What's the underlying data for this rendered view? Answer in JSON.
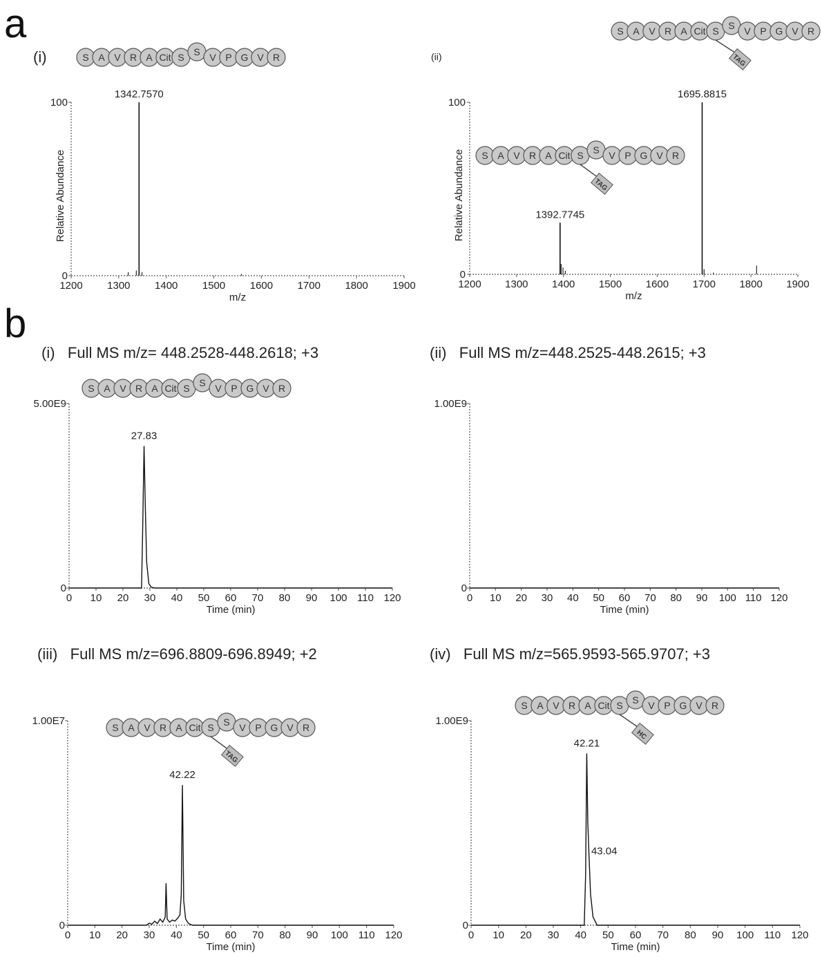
{
  "panels": {
    "a": "a",
    "b": "b"
  },
  "peptide": {
    "residues": [
      "S",
      "A",
      "V",
      "R",
      "A",
      "Cit",
      "S",
      "S",
      "V",
      "P",
      "G",
      "V",
      "R"
    ]
  },
  "peptide_tags": [
    "TAG",
    "TAG",
    "HC"
  ],
  "chart_data": [
    {
      "id": "a-i",
      "type": "line",
      "label": "(i)",
      "xlabel": "m/z",
      "ylabel": "Relative Abundance",
      "xlim": [
        1200,
        1900
      ],
      "ylim": [
        0,
        100
      ],
      "xticks": [
        "1200",
        "1300",
        "1400",
        "1500",
        "1600",
        "1700",
        "1800",
        "1900"
      ],
      "yticks": [
        "0",
        "100"
      ],
      "peaks": [
        {
          "x": 1342.757,
          "y": 100,
          "label": "1342.7570"
        },
        {
          "x": 1320,
          "y": 2
        },
        {
          "x": 1337,
          "y": 3
        },
        {
          "x": 1349,
          "y": 2
        },
        {
          "x": 1558,
          "y": 1
        }
      ]
    },
    {
      "id": "a-ii",
      "type": "line",
      "label": "(ii)",
      "xlabel": "m/z",
      "ylabel": "Relative Abundance",
      "xlim": [
        1200,
        1900
      ],
      "ylim": [
        0,
        100
      ],
      "xticks": [
        "1200",
        "1300",
        "1400",
        "1500",
        "1600",
        "1700",
        "1800",
        "1900"
      ],
      "yticks": [
        "0",
        "100"
      ],
      "peaks": [
        {
          "x": 1392.7745,
          "y": 30,
          "label": "1392.7745"
        },
        {
          "x": 1395,
          "y": 6
        },
        {
          "x": 1399,
          "y": 4
        },
        {
          "x": 1404,
          "y": 2
        },
        {
          "x": 1695.8815,
          "y": 100,
          "label": "1695.8815"
        },
        {
          "x": 1700,
          "y": 3
        },
        {
          "x": 1720,
          "y": 1
        },
        {
          "x": 1812,
          "y": 5
        }
      ]
    },
    {
      "id": "b-i",
      "type": "line",
      "label": "(i)",
      "title": "Full MS  m/z= 448.2528-448.2618; +3",
      "xlabel": "Time (min)",
      "xlim": [
        0,
        120
      ],
      "ylim": [
        0,
        5000000000
      ],
      "xticks": [
        "0",
        "10",
        "20",
        "30",
        "40",
        "50",
        "60",
        "70",
        "80",
        "90",
        "100",
        "110",
        "120"
      ],
      "yticks": [
        "0",
        "5.00E9"
      ],
      "trace": [
        [
          0,
          0
        ],
        [
          26.9,
          0
        ],
        [
          27.3,
          1500000000
        ],
        [
          27.83,
          3850000000
        ],
        [
          28.3,
          2200000000
        ],
        [
          28.8,
          700000000
        ],
        [
          29.6,
          120000000
        ],
        [
          30.5,
          20000000
        ],
        [
          32,
          0
        ],
        [
          120,
          0
        ]
      ],
      "peak_labels": [
        {
          "x": 27.83,
          "y": 3850000000,
          "label": "27.83"
        }
      ]
    },
    {
      "id": "b-ii",
      "type": "line",
      "label": "(ii)",
      "title": "Full MS  m/z=448.2525-448.2615; +3",
      "xlabel": "Time (min)",
      "xlim": [
        0,
        120
      ],
      "ylim": [
        0,
        1000000000
      ],
      "xticks": [
        "0",
        "10",
        "20",
        "30",
        "40",
        "50",
        "60",
        "70",
        "80",
        "90",
        "100",
        "110",
        "120"
      ],
      "yticks": [
        "0",
        "1.00E9"
      ],
      "trace": [
        [
          0,
          0
        ],
        [
          120,
          0
        ]
      ],
      "peak_labels": []
    },
    {
      "id": "b-iii",
      "type": "line",
      "label": "(iii)",
      "title": "Full MS  m/z=696.8809-696.8949; +2",
      "xlabel": "Time (min)",
      "xlim": [
        0,
        120
      ],
      "ylim": [
        0,
        10000000
      ],
      "xticks": [
        "0",
        "10",
        "20",
        "30",
        "40",
        "50",
        "60",
        "70",
        "80",
        "90",
        "100",
        "110",
        "120"
      ],
      "yticks": [
        "0",
        "1.00E7"
      ],
      "trace": [
        [
          0,
          0
        ],
        [
          29,
          0
        ],
        [
          30,
          100000
        ],
        [
          31,
          50000
        ],
        [
          32,
          200000
        ],
        [
          33,
          80000
        ],
        [
          34,
          300000
        ],
        [
          35,
          150000
        ],
        [
          35.9,
          400000
        ],
        [
          36.2,
          2050000
        ],
        [
          36.6,
          300000
        ],
        [
          37.5,
          150000
        ],
        [
          38.5,
          250000
        ],
        [
          39.5,
          200000
        ],
        [
          40.5,
          350000
        ],
        [
          41.3,
          500000
        ],
        [
          41.8,
          1500000
        ],
        [
          42.22,
          6850000
        ],
        [
          42.7,
          1200000
        ],
        [
          43.4,
          300000
        ],
        [
          44.5,
          80000
        ],
        [
          46,
          0
        ],
        [
          120,
          0
        ]
      ],
      "peak_labels": [
        {
          "x": 42.22,
          "y": 6850000,
          "label": "42.22"
        }
      ]
    },
    {
      "id": "b-iv",
      "type": "line",
      "label": "(iv)",
      "title": "Full MS  m/z=565.9593-565.9707; +3",
      "xlabel": "Time (min)",
      "xlim": [
        0,
        120
      ],
      "ylim": [
        0,
        1000000000
      ],
      "xticks": [
        "0",
        "10",
        "20",
        "30",
        "40",
        "50",
        "60",
        "70",
        "80",
        "90",
        "100",
        "110",
        "120"
      ],
      "yticks": [
        "0",
        "1.00E9"
      ],
      "trace": [
        [
          0,
          0
        ],
        [
          41.3,
          0
        ],
        [
          41.8,
          250000000
        ],
        [
          42.21,
          840000000
        ],
        [
          42.6,
          500000000
        ],
        [
          43.04,
          340000000
        ],
        [
          43.6,
          150000000
        ],
        [
          44.5,
          40000000
        ],
        [
          46,
          0
        ],
        [
          120,
          0
        ]
      ],
      "peak_labels": [
        {
          "x": 42.21,
          "y": 840000000,
          "label": "42.21"
        },
        {
          "x": 43.04,
          "y": 340000000,
          "label": "43.04"
        }
      ]
    }
  ]
}
